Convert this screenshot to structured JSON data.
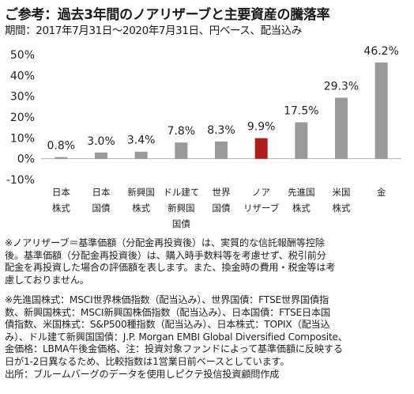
{
  "header": {
    "title": "ご参考：過去3年間のノアリザーブと主要資産の騰落率",
    "subtitle": "期間：2017年7月31日～2020年7月31日、円ベース、配当込み"
  },
  "chart_data": {
    "type": "bar",
    "categories": [
      [
        "日本",
        "株式"
      ],
      [
        "日本",
        "国債"
      ],
      [
        "新興国",
        "株式"
      ],
      [
        "ドル建て",
        "新興国",
        "国債"
      ],
      [
        "世界",
        "国債"
      ],
      [
        "ノア",
        "リザーブ"
      ],
      [
        "先進国",
        "株式"
      ],
      [
        "米国",
        "株式"
      ],
      [
        "金"
      ]
    ],
    "values": [
      0.8,
      3.0,
      3.4,
      7.8,
      8.3,
      9.9,
      17.5,
      29.3,
      46.2
    ],
    "value_labels": [
      "0.8%",
      "3.0%",
      "3.4%",
      "7.8%",
      "8.3%",
      "9.9%",
      "17.5%",
      "29.3%",
      "46.2%"
    ],
    "y_ticks": [
      -10,
      0,
      10,
      20,
      30,
      40,
      50
    ],
    "y_tick_labels": [
      "-10%",
      "0%",
      "10%",
      "20%",
      "30%",
      "40%",
      "50%"
    ],
    "ylim": [
      -10,
      50
    ],
    "grid": false,
    "colors": {
      "default": "#9a9a9a",
      "highlight": "#b01b1b"
    },
    "highlight_index": 5
  },
  "notes": {
    "block1": [
      "※ノアリザーブ＝基準価額（分配金再投資後）は、実質的な信託報酬等控除",
      "後。基準価額（分配金再投資後）は、購入時手数料等を考慮せず、税引前分",
      "配金を再投資した場合の評価額を表します。また、換金時の費用・税金等は考",
      "慮しておりません。"
    ],
    "block2": [
      "※先進国株式：MSCI世界株価指数（配当込み）、世界国債：FTSE世界国債指",
      "数、新興国株式：MSCI新興国株価指数（配当込み）、日本国債：FTSE日本国",
      "債指数、米国株式：S&P500種指数（配当込み）、日本株式：TOPIX（配当込",
      "み）、ドル建て新興国国債：J.P. Morgan EMBI Global Diversified Composite、",
      "金価格：LBMA午後金価格、注：投資対象ファンドによって基準価額に反映する",
      "日が1-2日異なるため、比較指数は1営業日前ベースとしています。",
      "出所：ブルームバーグのデータを使用しピクテ投信投資顧問作成"
    ]
  }
}
